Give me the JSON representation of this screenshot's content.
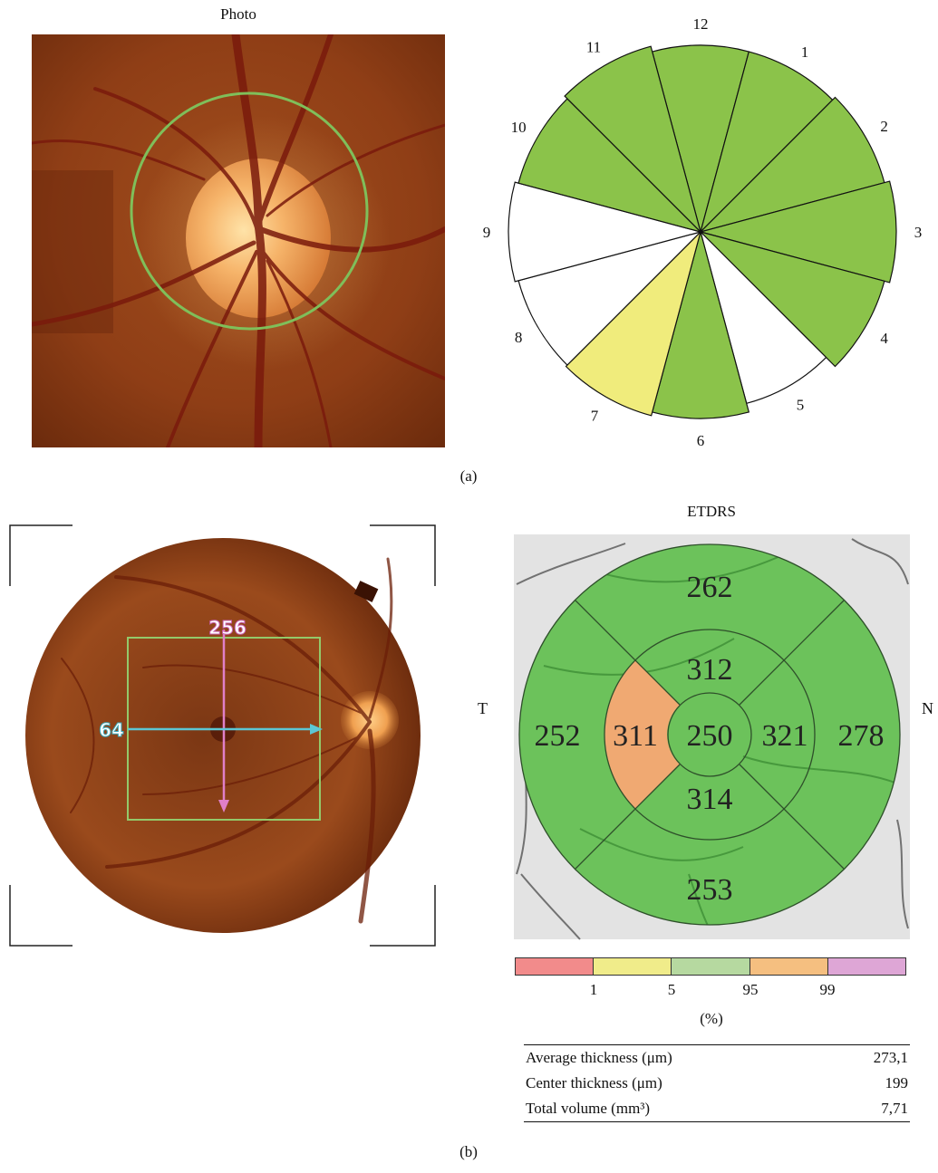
{
  "panel_a": {
    "photo_title": "Photo",
    "caption": "(a)",
    "sector_labels": [
      "12",
      "1",
      "2",
      "3",
      "4",
      "5",
      "6",
      "7",
      "8",
      "9",
      "10",
      "11"
    ],
    "sector_colors": [
      "#8bc34a",
      "#8bc34a",
      "#8bc34a",
      "#8bc34a",
      "#8bc34a",
      "#ffffff",
      "#8bc34a",
      "#f0ec7c",
      "#ffffff",
      "#ffffff",
      "#8bc34a",
      "#8bc34a"
    ]
  },
  "panel_b": {
    "caption": "(b)",
    "scan_vertical_label": "256",
    "scan_horizontal_label": "64",
    "etdrs_title": "ETDRS",
    "temporal_label": "T",
    "nasal_label": "N",
    "values": {
      "outer_superior": "262",
      "inner_superior": "312",
      "outer_temporal": "252",
      "inner_temporal": "311",
      "center": "250",
      "inner_nasal": "321",
      "outer_nasal": "278",
      "inner_inferior": "314",
      "outer_inferior": "253"
    },
    "sector_colors": {
      "normal": "#6cc25b",
      "inner_temporal": "#f0a972"
    },
    "legend": {
      "colors": [
        "#f28b8b",
        "#f0ec8a",
        "#b6d9a0",
        "#f5bf80",
        "#dea6d6"
      ],
      "ticks": [
        "1",
        "5",
        "95",
        "99"
      ],
      "unit": "(%)"
    },
    "stats": [
      {
        "label": "Average thickness (μm)",
        "value": "273,1"
      },
      {
        "label": "Center thickness (μm)",
        "value": "199"
      },
      {
        "label": "Total volume (mm³)",
        "value": "7,71"
      }
    ]
  }
}
